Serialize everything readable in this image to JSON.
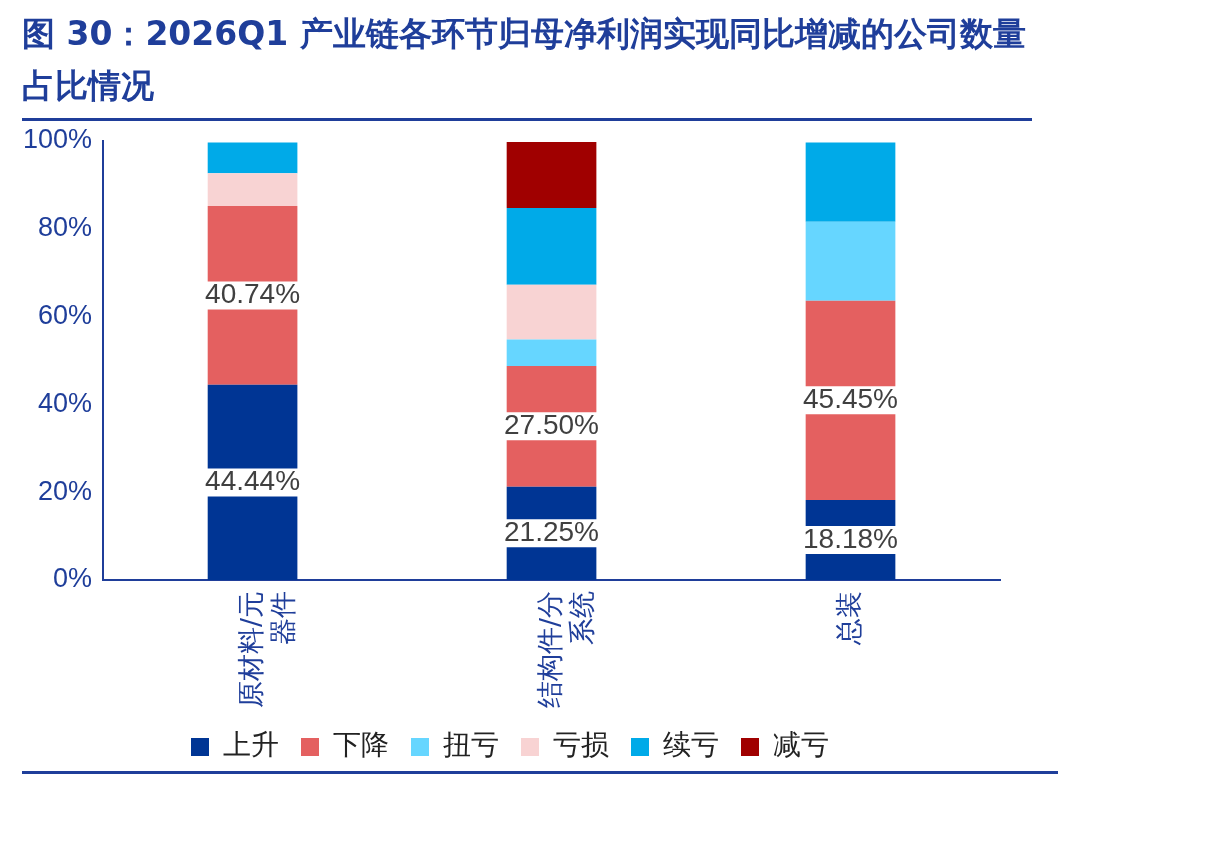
{
  "chart_data": {
    "type": "bar",
    "title": "图 30：2026Q1 产业链各环节归母净利润实现同比增减的公司数量占比情况",
    "categories": [
      "原材料/元器件",
      "结构件/分系统",
      "总装"
    ],
    "stacked": true,
    "ylim": [
      0,
      100
    ],
    "yticks": [
      {
        "value": 0,
        "label": "0%"
      },
      {
        "value": 20,
        "label": "20%"
      },
      {
        "value": 40,
        "label": "40%"
      },
      {
        "value": 60,
        "label": "60%"
      },
      {
        "value": 80,
        "label": "80%"
      },
      {
        "value": 100,
        "label": "100%"
      }
    ],
    "grid": false,
    "legend": "bottom",
    "series": [
      {
        "name": "上升",
        "color": "#003594",
        "values": [
          44.44,
          21.25,
          18.18
        ],
        "value_labels": [
          "44.44%",
          "21.25%",
          "18.18%"
        ]
      },
      {
        "name": "下降",
        "color": "#e46060",
        "values": [
          40.74,
          27.5,
          45.45
        ],
        "value_labels": [
          "40.74%",
          "27.50%",
          "45.45%"
        ]
      },
      {
        "name": "扭亏",
        "color": "#66d6ff",
        "values": [
          0,
          6,
          18
        ]
      },
      {
        "name": "亏损",
        "color": "#f8d3d3",
        "values": [
          7.5,
          12.5,
          0
        ]
      },
      {
        "name": "续亏",
        "color": "#00aae8",
        "values": [
          7,
          17.5,
          18
        ]
      },
      {
        "name": "减亏",
        "color": "#a00000",
        "values": [
          0,
          15,
          0
        ]
      }
    ]
  }
}
